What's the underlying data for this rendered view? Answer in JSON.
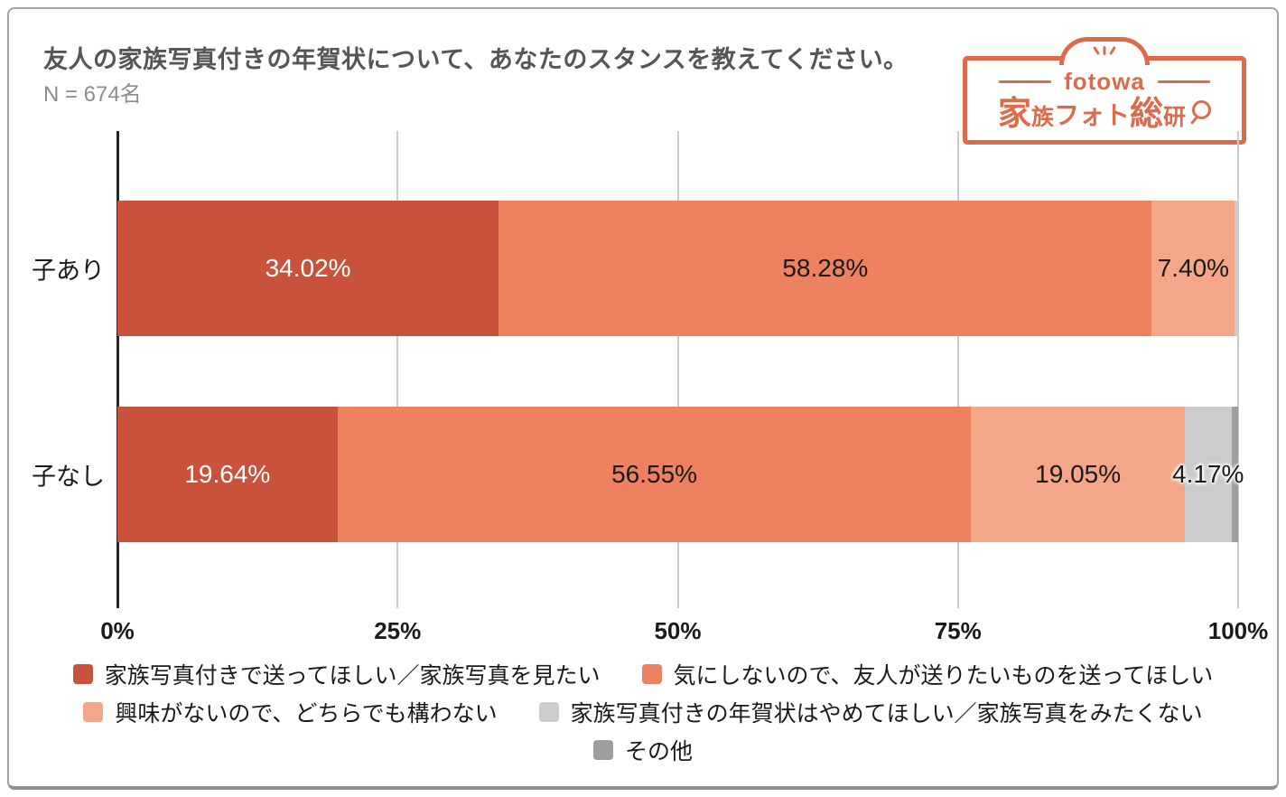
{
  "header": {
    "title": "友人の家族写真付きの年賀状について、あなたのスタンスを教えてください。",
    "sample_size": "N = 674名"
  },
  "logo": {
    "brand": "fotowa",
    "name": "家族フォト総研",
    "magnifier_icon": "magnifier-icon"
  },
  "colors": {
    "logo-orange": "#dd6b4b",
    "title-text": "#555555",
    "subtitle-text": "#8c8c8c",
    "label-text": "#1a1a1a",
    "grid-line": "#cccccc",
    "axis-line": "#262626",
    "card-border": "#a5a5a5",
    "card-border-bottom": "#8f8f8f",
    "background": "#ffffff"
  },
  "chart_data": {
    "type": "bar",
    "orientation": "horizontal",
    "stacked": true,
    "unit": "%",
    "title": "友人の家族写真付きの年賀状について、あなたのスタンスを教えてください。",
    "subtitle": "N = 674名",
    "categories": [
      "子あり",
      "子なし"
    ],
    "series": [
      {
        "name": "家族写真付きで送ってほしい／家族写真を見たい",
        "color": "#c9523c",
        "label_color": "#ffffff",
        "values": [
          34.02,
          19.64
        ]
      },
      {
        "name": "気にしないので、友人が送りたいものを送ってほしい",
        "color": "#ee8260",
        "label_color": "#1a1a1a",
        "values": [
          58.28,
          56.55
        ]
      },
      {
        "name": "興味がないので、どちらでも構わない",
        "color": "#f4a688",
        "label_color": "#1a1a1a",
        "values": [
          7.4,
          19.05
        ]
      },
      {
        "name": "家族写真付きの年賀状はやめてほしい／家族写真をみたくない",
        "color": "#cccccc",
        "label_color": "#1a1a1a",
        "values": [
          0.3,
          4.17
        ]
      },
      {
        "name": "その他",
        "color": "#9e9e9e",
        "label_color": "#1a1a1a",
        "values": [
          0.0,
          0.6
        ]
      }
    ],
    "value_labels": [
      [
        "34.02%",
        "58.28%",
        "7.40%",
        "",
        ""
      ],
      [
        "19.64%",
        "56.55%",
        "19.05%",
        "4.17%",
        ""
      ]
    ],
    "xlabel_ticks": [
      "0%",
      "25%",
      "50%",
      "75%",
      "100%"
    ],
    "xticks": [
      0,
      25,
      50,
      75,
      100
    ],
    "xlim": [
      0,
      100
    ],
    "grid": true,
    "legend_position": "bottom"
  }
}
